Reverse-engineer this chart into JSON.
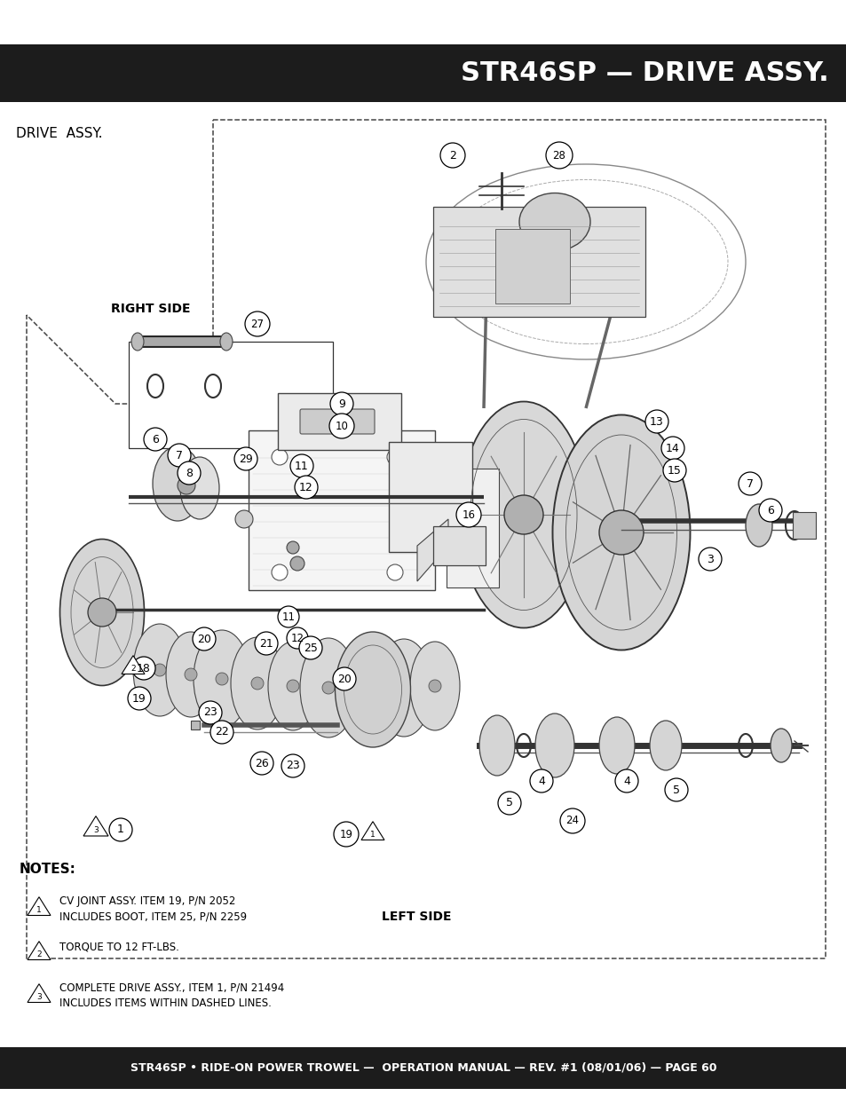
{
  "title_bar_text": "STR46SP — DRIVE ASSY.",
  "title_bar_bg": "#1c1c1c",
  "title_bar_text_color": "#ffffff",
  "page_bg": "#ffffff",
  "header_label": "DRIVE  ASSY.",
  "footer_bar_text": "STR46SP • RIDE-ON POWER TROWEL —  OPERATION MANUAL — REV. #1 (08/01/06) — PAGE 60",
  "footer_bar_bg": "#1c1c1c",
  "footer_bar_text_color": "#ffffff",
  "notes_title": "NOTES:",
  "note1_line1": "CV JOINT ASSY. ITEM 19, P/N 2052",
  "note1_line2": "INCLUDES BOOT, ITEM 25, P/N 2259",
  "note2_line1": "TORQUE TO 12 FT-LBS.",
  "note3_line1": "COMPLETE DRIVE ASSY., ITEM 1, P/N 21494",
  "note3_line2": "INCLUDES ITEMS WITHIN DASHED LINES."
}
